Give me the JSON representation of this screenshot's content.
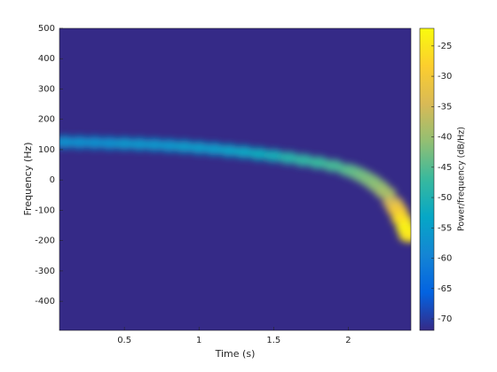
{
  "chart_data": {
    "type": "spectrogram",
    "xlabel": "Time (s)",
    "ylabel": "Frequency (Hz)",
    "colorbar_label": "Power/frequency (dB/Hz)",
    "x": [
      0.1,
      0.2,
      0.3,
      0.4,
      0.5,
      0.6,
      0.7,
      0.8,
      0.9,
      1.0,
      1.1,
      1.2,
      1.3,
      1.4,
      1.5,
      1.6,
      1.7,
      1.8,
      1.9,
      2.0,
      2.05,
      2.1,
      2.15,
      2.2,
      2.25,
      2.3,
      2.33,
      2.36,
      2.39,
      2.41
    ],
    "y": [
      125,
      124,
      123,
      121,
      120,
      118,
      116,
      113,
      110,
      106,
      102,
      97,
      92,
      86,
      80,
      73,
      65,
      57,
      47,
      33,
      24,
      12,
      -2,
      -20,
      -42,
      -75,
      -100,
      -130,
      -160,
      -185
    ],
    "values": [
      -57,
      -57,
      -57,
      -57,
      -56,
      -56,
      -56,
      -56,
      -55,
      -55,
      -55,
      -54,
      -53,
      -52,
      -51,
      -49,
      -48,
      -47,
      -46,
      -45,
      -44,
      -43,
      -42,
      -41,
      -39,
      -35,
      -30,
      -26,
      -23,
      -25
    ],
    "xlim": [
      0.065,
      2.42
    ],
    "ylim": [
      -496,
      500
    ],
    "clim": [
      -71.9,
      -22.1
    ],
    "xticks": [
      0.5,
      1,
      1.5,
      2
    ],
    "yticks": [
      -400,
      -300,
      -200,
      -100,
      0,
      100,
      200,
      300,
      400,
      500
    ],
    "cticks": [
      -70,
      -65,
      -60,
      -55,
      -50,
      -45,
      -40,
      -35,
      -30,
      -25
    ]
  }
}
